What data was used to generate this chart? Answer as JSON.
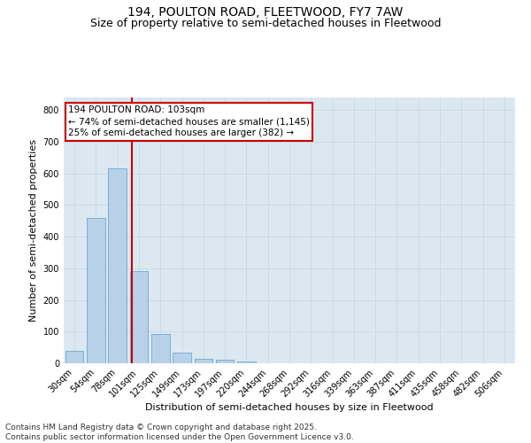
{
  "title_line1": "194, POULTON ROAD, FLEETWOOD, FY7 7AW",
  "title_line2": "Size of property relative to semi-detached houses in Fleetwood",
  "xlabel": "Distribution of semi-detached houses by size in Fleetwood",
  "ylabel": "Number of semi-detached properties",
  "categories": [
    "30sqm",
    "54sqm",
    "78sqm",
    "101sqm",
    "125sqm",
    "149sqm",
    "173sqm",
    "197sqm",
    "220sqm",
    "244sqm",
    "268sqm",
    "292sqm",
    "316sqm",
    "339sqm",
    "363sqm",
    "387sqm",
    "411sqm",
    "435sqm",
    "458sqm",
    "482sqm",
    "506sqm"
  ],
  "values": [
    38,
    460,
    617,
    290,
    93,
    33,
    15,
    10,
    5,
    0,
    0,
    0,
    0,
    0,
    0,
    0,
    0,
    0,
    0,
    0,
    0
  ],
  "bar_color": "#b8d0e8",
  "bar_edge_color": "#6aaad4",
  "vline_color": "#cc0000",
  "annotation_box_text": "194 POULTON ROAD: 103sqm\n← 74% of semi-detached houses are smaller (1,145)\n25% of semi-detached houses are larger (382) →",
  "annotation_box_color": "#cc0000",
  "ylim": [
    0,
    840
  ],
  "yticks": [
    0,
    100,
    200,
    300,
    400,
    500,
    600,
    700,
    800
  ],
  "grid_color": "#c8d8e8",
  "background_color": "#dce8f0",
  "footnote": "Contains HM Land Registry data © Crown copyright and database right 2025.\nContains public sector information licensed under the Open Government Licence v3.0.",
  "title_fontsize": 10,
  "subtitle_fontsize": 9,
  "label_fontsize": 8,
  "tick_fontsize": 7,
  "footnote_fontsize": 6.5,
  "annot_fontsize": 7.5
}
